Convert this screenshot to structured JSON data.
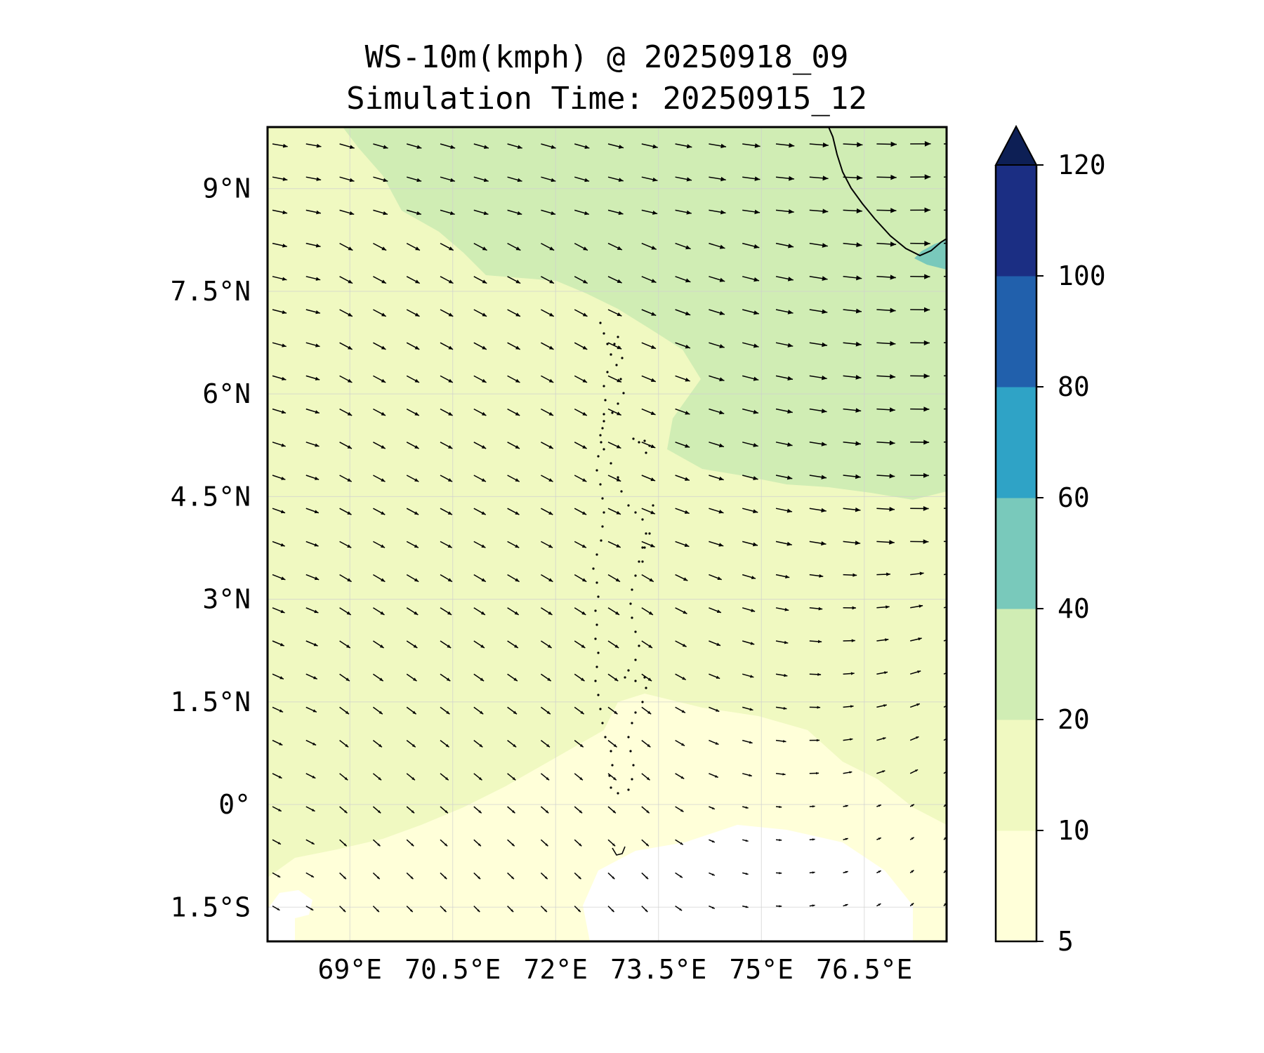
{
  "title": {
    "line1": "WS-10m(kmph) @ 20250918_09",
    "line2": "Simulation Time: 20250915_12"
  },
  "map_data": {
    "type": "wind-speed-contour-with-vectors",
    "extent": {
      "lon_min": 67.8,
      "lon_max": 77.7,
      "lat_min": -2.0,
      "lat_max": 9.9
    },
    "x_ticks": [
      {
        "value": 69.0,
        "label": "69°E"
      },
      {
        "value": 70.5,
        "label": "70.5°E"
      },
      {
        "value": 72.0,
        "label": "72°E"
      },
      {
        "value": 73.5,
        "label": "73.5°E"
      },
      {
        "value": 75.0,
        "label": "75°E"
      },
      {
        "value": 76.5,
        "label": "76.5°E"
      }
    ],
    "y_ticks": [
      {
        "value": 9.0,
        "label": "9°N"
      },
      {
        "value": 7.5,
        "label": "7.5°N"
      },
      {
        "value": 6.0,
        "label": "6°N"
      },
      {
        "value": 4.5,
        "label": "4.5°N"
      },
      {
        "value": 3.0,
        "label": "3°N"
      },
      {
        "value": 1.5,
        "label": "1.5°N"
      },
      {
        "value": 0.0,
        "label": "0°"
      },
      {
        "value": -1.5,
        "label": "1.5°S"
      }
    ],
    "grid": true,
    "colorbar": {
      "placement": "right",
      "extend": "max",
      "levels": [
        5,
        10,
        20,
        40,
        60,
        80,
        100,
        120
      ],
      "labels": [
        "5",
        "10",
        "20",
        "40",
        "60",
        "80",
        "100",
        "120"
      ],
      "colors": [
        "#ffffd9",
        "#f0f9c1",
        "#d0edb4",
        "#79c9bb",
        "#2fa3c6",
        "#2160ac",
        "#1b2e83"
      ],
      "extend_color": "#0d1f55"
    }
  },
  "colors": {
    "background": "#ffffff",
    "base_field": "#f0f9c1",
    "calm_field": "#ffffd9",
    "white_field": "#ffffff",
    "strong_field": "#d0edb4",
    "coast_field": "#79c9bb",
    "land_edge": "#000000",
    "arrow": "#000000"
  }
}
